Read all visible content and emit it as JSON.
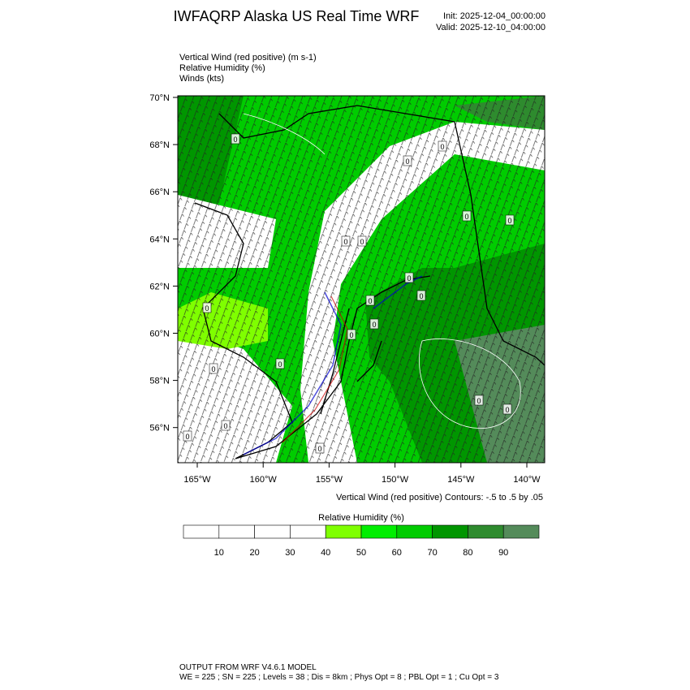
{
  "header": {
    "title": "IWFAQRP Alaska US Real Time WRF",
    "init": "Init: 2025-12-04_00:00:00",
    "valid": "Valid: 2025-12-10_04:00:00"
  },
  "fields": [
    "Vertical Wind (red positive)   (m s-1)",
    "Relative Humidity   (%)",
    "Winds   (kts)"
  ],
  "map": {
    "lat_ticks": [
      {
        "value": 70,
        "label": "70°N"
      },
      {
        "value": 68,
        "label": "68°N"
      },
      {
        "value": 66,
        "label": "66°N"
      },
      {
        "value": 64,
        "label": "64°N"
      },
      {
        "value": 62,
        "label": "62°N"
      },
      {
        "value": 60,
        "label": "60°N"
      },
      {
        "value": 58,
        "label": "58°N"
      },
      {
        "value": 56,
        "label": "56°N"
      }
    ],
    "lon_ticks": [
      {
        "value": -165,
        "label": "165°W"
      },
      {
        "value": -160,
        "label": "160°W"
      },
      {
        "value": -155,
        "label": "155°W"
      },
      {
        "value": -150,
        "label": "150°W"
      },
      {
        "value": -145,
        "label": "145°W"
      },
      {
        "value": -140,
        "label": "140°W"
      }
    ],
    "contour_labels": [
      "0",
      "0",
      "0",
      "0",
      "0",
      "0",
      "0",
      "0",
      "0",
      "0",
      "0",
      "0",
      "0",
      "0",
      "0",
      "0",
      "0",
      "0",
      "0",
      "0"
    ]
  },
  "caption": "Vertical Wind (red positive) Contours: -.5 to .5 by .05",
  "colorbar": {
    "title": "Relative Humidity  (%)",
    "lim": [
      0,
      100
    ],
    "ticks": [
      10,
      20,
      30,
      40,
      50,
      60,
      70,
      80,
      90
    ],
    "colors": [
      "#ffffff",
      "#ffffff",
      "#ffffff",
      "#ffffff",
      "#7fff00",
      "#00ee00",
      "#00cc00",
      "#009600",
      "#2e8b2e",
      "#548b5a"
    ]
  },
  "footer": [
    "OUTPUT FROM WRF V4.6.1 MODEL",
    "WE = 225 ; SN = 225 ; Levels = 38 ; Dis = 8km ; Phys Opt = 8 ; PBL Opt = 1 ; Cu Opt = 3"
  ]
}
